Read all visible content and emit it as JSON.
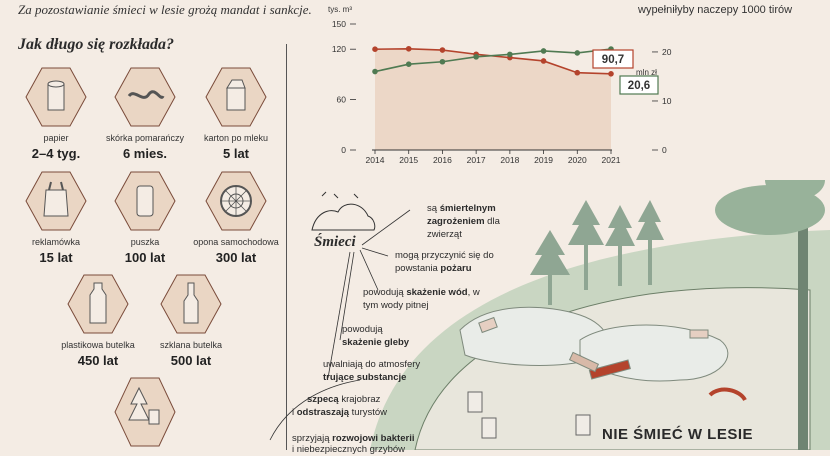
{
  "intro_text": "Za pozostawianie śmieci w lesie grożą mandat i sankcje.",
  "top_right_text": "wypełniłyby naczepy 1000 tirów",
  "decomposition": {
    "title": "Jak długo się rozkłada?",
    "items": [
      {
        "label": "papier",
        "value": "2–4 tyg.",
        "icon": "paper-roll-icon"
      },
      {
        "label": "skórka pomarańczy",
        "value": "6 mies.",
        "icon": "orange-peel-icon"
      },
      {
        "label": "karton po mleku",
        "value": "5 lat",
        "icon": "milk-carton-icon"
      },
      {
        "label": "reklamówka",
        "value": "15 lat",
        "icon": "plastic-bag-icon"
      },
      {
        "label": "puszka",
        "value": "100 lat",
        "icon": "can-icon"
      },
      {
        "label": "opona samochodowa",
        "value": "300 lat",
        "icon": "tire-icon"
      },
      {
        "label": "plastikowa butelka",
        "value": "450 lat",
        "icon": "plastic-bottle-icon"
      },
      {
        "label": "szklana butelka",
        "value": "500 lat",
        "icon": "glass-bottle-icon"
      },
      {
        "label": "",
        "value": "",
        "icon": "tree-cup-icon"
      }
    ]
  },
  "chart_data": {
    "type": "line",
    "x": [
      2014,
      2015,
      2016,
      2017,
      2018,
      2019,
      2020,
      2021
    ],
    "series": [
      {
        "name": "tys. m³",
        "axis": "left",
        "color": "#b4432c",
        "values": [
          120,
          120.5,
          119,
          114,
          110,
          106,
          92,
          90.7
        ]
      },
      {
        "name": "mln zł",
        "axis": "right",
        "color": "#4f7a52",
        "values": [
          16,
          17.5,
          18,
          19,
          19.5,
          20.2,
          19.8,
          20.6
        ]
      }
    ],
    "left_axis": {
      "label": "tys. m³",
      "ticks": [
        "150",
        "120",
        "60",
        "0"
      ],
      "ylim": [
        0,
        150
      ]
    },
    "right_axis": {
      "label": "mln zł",
      "ticks": [
        "20",
        "10",
        "0"
      ],
      "ylim": [
        0,
        25.7
      ]
    },
    "end_labels": {
      "red": "90,7",
      "green": "20,6"
    }
  },
  "effects": {
    "center_label": "Śmieci",
    "items": [
      {
        "pre": "są ",
        "bold": "śmiertelnym zagrożeniem",
        "post": " dla zwierząt"
      },
      {
        "pre": "mogą przyczynić się do powstania ",
        "bold": "pożaru",
        "post": ""
      },
      {
        "pre": "powodują ",
        "bold": "skażenie wód",
        "post": ", w tym wody pitnej"
      },
      {
        "pre": "powodują ",
        "bold": "skażenie gleby",
        "post": ""
      },
      {
        "pre": "uwalniają do atmosfery ",
        "bold": "trujące substancje",
        "post": ""
      },
      {
        "pre": "",
        "bold": "szpecą",
        "post": " krajobraz"
      },
      {
        "pre": "i ",
        "bold": "odstraszają",
        "post": " turystów"
      },
      {
        "pre": "sprzyjają ",
        "bold": "rozwojowi bakterii",
        "post": ""
      },
      {
        "pre": "i niebezpiecznych grzybów",
        "bold": "",
        "post": ""
      }
    ]
  },
  "slogan": "NIE ŚMIEĆ W LESIE",
  "colors": {
    "accent_red": "#b4432c",
    "accent_green": "#4f7a52",
    "hex_fill": "#ead6c4",
    "tree": "#98b29a"
  }
}
